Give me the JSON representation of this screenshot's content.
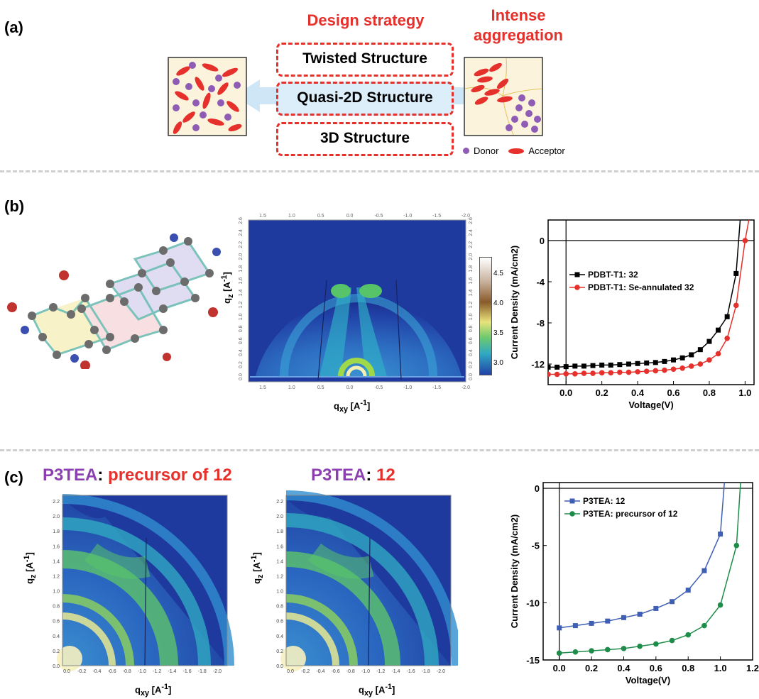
{
  "panels": {
    "a": {
      "label": "(a)"
    },
    "b": {
      "label": "(b)"
    },
    "c": {
      "label": "(c)"
    }
  },
  "section_a": {
    "design_heading": "Design strategy",
    "aggregation_heading_line1": "Intense",
    "aggregation_heading_line2": "aggregation",
    "strategies": [
      "Twisted Structure",
      "Quasi-2D Structure",
      "3D Structure"
    ],
    "legend_donor": "Donor",
    "legend_acceptor": "Acceptor",
    "colors": {
      "donor": "#8e5bb5",
      "acceptor": "#e5302b",
      "box_bg": "#fbf3dc",
      "arrow": "#cfe6f7"
    }
  },
  "section_b": {
    "giwaxs": {
      "ylabel": "qz [A-1]",
      "xlabel": "qxy [A-1]",
      "x_ticks": [
        "1.5",
        "1.0",
        "0.5",
        "0.0",
        "-0.5",
        "-1.0",
        "-1.5",
        "-2.0"
      ],
      "y_ticks": [
        "0.0",
        "0.2",
        "0.4",
        "0.6",
        "0.8",
        "1.0",
        "1.2",
        "1.4",
        "1.6",
        "1.8",
        "2.0",
        "2.2",
        "2.4",
        "2.6"
      ],
      "colorbar_ticks": [
        "4.5",
        "4.0",
        "3.5",
        "3.0"
      ]
    }
  },
  "section_c": {
    "title_left_black": "P3TEA",
    "title_left_colon": ": ",
    "title_left_red": "precursor of 12",
    "title_mid_black": "P3TEA",
    "title_mid_colon": ": ",
    "title_mid_red": "12",
    "giwaxs": {
      "ylabel": "qz [A-1]",
      "xlabel": "qxy [A-1]",
      "x_ticks": [
        "0.0",
        "-0.2",
        "-0.4",
        "-0.6",
        "-0.8",
        "-1.0",
        "-1.2",
        "-1.4",
        "-1.6",
        "-1.8",
        "-2.0"
      ],
      "y_ticks": [
        "0.0",
        "0.2",
        "0.4",
        "0.6",
        "0.8",
        "1.0",
        "1.2",
        "1.4",
        "1.6",
        "1.8",
        "2.0",
        "2.2"
      ]
    },
    "colors": {
      "purple": "#8b3fb0",
      "red": "#e5302b"
    }
  },
  "chart_data": [
    {
      "type": "line",
      "xlabel": "Voltage(V)",
      "ylabel": "Current Density (mA/cm2)",
      "xlim": [
        -0.1,
        1.05
      ],
      "ylim": [
        -14,
        2
      ],
      "x_ticks": [
        0.0,
        0.2,
        0.4,
        0.6,
        0.8,
        1.0
      ],
      "x_tick_labels": [
        "0.0",
        "0.2",
        "0.4",
        "0.6",
        "0.8",
        "1.0"
      ],
      "y_ticks": [
        0,
        -4,
        -8,
        -12
      ],
      "y_tick_labels": [
        "0",
        "-4",
        "-8",
        "-12"
      ],
      "legend": "upper-left",
      "series": [
        {
          "name": "PDBT-T1: 32",
          "color": "#000000",
          "marker": "square",
          "x": [
            -0.1,
            -0.05,
            0.0,
            0.05,
            0.1,
            0.15,
            0.2,
            0.25,
            0.3,
            0.35,
            0.4,
            0.45,
            0.5,
            0.55,
            0.6,
            0.65,
            0.7,
            0.75,
            0.8,
            0.85,
            0.9,
            0.95
          ],
          "y": [
            -12.3,
            -12.3,
            -12.25,
            -12.2,
            -12.2,
            -12.15,
            -12.1,
            -12.1,
            -12.05,
            -12.0,
            -11.95,
            -11.9,
            -11.85,
            -11.75,
            -11.6,
            -11.4,
            -11.1,
            -10.6,
            -9.8,
            -8.7,
            -7.4,
            -3.2
          ]
        },
        {
          "name": "PDBT-T1: Se-annulated 32",
          "color": "#e5302b",
          "marker": "circle",
          "x": [
            -0.1,
            -0.05,
            0.0,
            0.05,
            0.1,
            0.15,
            0.2,
            0.25,
            0.3,
            0.35,
            0.4,
            0.45,
            0.5,
            0.55,
            0.6,
            0.65,
            0.7,
            0.75,
            0.8,
            0.85,
            0.9,
            0.95,
            1.0
          ],
          "y": [
            -13.0,
            -13.0,
            -12.95,
            -12.95,
            -12.9,
            -12.9,
            -12.85,
            -12.85,
            -12.8,
            -12.8,
            -12.75,
            -12.7,
            -12.65,
            -12.6,
            -12.5,
            -12.4,
            -12.2,
            -12.0,
            -11.6,
            -11.0,
            -9.5,
            -6.3,
            0.0
          ]
        }
      ]
    },
    {
      "type": "line",
      "xlabel": "Voltage(V)",
      "ylabel": "Current Density (mA/cm2)",
      "xlim": [
        -0.1,
        1.2
      ],
      "ylim": [
        -15,
        0.5
      ],
      "x_ticks": [
        0.0,
        0.2,
        0.4,
        0.6,
        0.8,
        1.0,
        1.2
      ],
      "x_tick_labels": [
        "0.0",
        "0.2",
        "0.4",
        "0.6",
        "0.8",
        "1.0",
        "1.2"
      ],
      "y_ticks": [
        0,
        -5,
        -10,
        -15
      ],
      "y_tick_labels": [
        "0",
        "-5",
        "-10",
        "-15"
      ],
      "legend": "upper-left",
      "series": [
        {
          "name": "P3TEA: 12",
          "color": "#3f5fb5",
          "marker": "square",
          "x": [
            0.0,
            0.1,
            0.2,
            0.3,
            0.4,
            0.5,
            0.6,
            0.7,
            0.8,
            0.9,
            1.0
          ],
          "y": [
            -12.2,
            -12.0,
            -11.8,
            -11.6,
            -11.3,
            -11.0,
            -10.5,
            -9.9,
            -8.9,
            -7.2,
            -4.0
          ]
        },
        {
          "name": "P3TEA: precursor of 12",
          "color": "#1e8c4a",
          "marker": "circle",
          "x": [
            0.0,
            0.1,
            0.2,
            0.3,
            0.4,
            0.5,
            0.6,
            0.7,
            0.8,
            0.9,
            1.0,
            1.1
          ],
          "y": [
            -14.4,
            -14.3,
            -14.2,
            -14.1,
            -14.0,
            -13.8,
            -13.6,
            -13.3,
            -12.8,
            -12.0,
            -10.2,
            -5.0
          ]
        }
      ]
    }
  ]
}
